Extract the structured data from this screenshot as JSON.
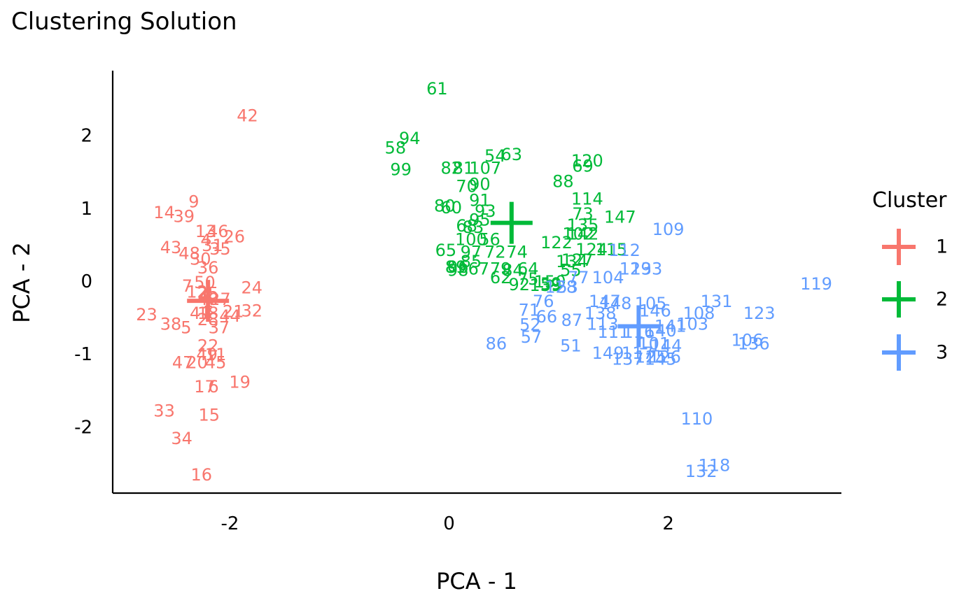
{
  "chart_data": {
    "type": "scatter",
    "title": "Clustering Solution",
    "xlabel": "PCA - 1",
    "ylabel": "PCA - 2",
    "xlim": [
      -3.07,
      3.58
    ],
    "ylim": [
      -2.9,
      2.9
    ],
    "x_ticks": [
      {
        "value": -2,
        "label": "-2"
      },
      {
        "value": 0,
        "label": "0"
      },
      {
        "value": 2,
        "label": "2"
      }
    ],
    "y_ticks": [
      {
        "value": 2,
        "label": "2"
      },
      {
        "value": 1,
        "label": "1"
      },
      {
        "value": 0,
        "label": "0"
      },
      {
        "value": -1,
        "label": "-1"
      },
      {
        "value": -2,
        "label": "-2"
      }
    ],
    "grid": false,
    "legend": {
      "title": "Cluster",
      "placement": "right",
      "entries": [
        {
          "label": "1",
          "color": "#F8766D"
        },
        {
          "label": "2",
          "color": "#00BA38"
        },
        {
          "label": "3",
          "color": "#619CFF"
        }
      ]
    },
    "centroids": [
      {
        "cluster": "1",
        "x": -2.2,
        "y": -0.26
      },
      {
        "cluster": "2",
        "x": 0.57,
        "y": 0.81
      },
      {
        "cluster": "3",
        "x": 1.73,
        "y": -0.61
      }
    ],
    "series": [
      {
        "cluster": "1",
        "color": "#F8766D",
        "points": [
          {
            "label": "42",
            "x": -1.84,
            "y": 2.28
          },
          {
            "label": "9",
            "x": -2.33,
            "y": 1.1
          },
          {
            "label": "14",
            "x": -2.6,
            "y": 0.95
          },
          {
            "label": "39",
            "x": -2.42,
            "y": 0.9
          },
          {
            "label": "13",
            "x": -2.22,
            "y": 0.69
          },
          {
            "label": "46",
            "x": -2.11,
            "y": 0.69
          },
          {
            "label": "26",
            "x": -1.96,
            "y": 0.62
          },
          {
            "label": "43",
            "x": -2.54,
            "y": 0.47
          },
          {
            "label": "4",
            "x": -2.22,
            "y": 0.57
          },
          {
            "label": "31",
            "x": -2.16,
            "y": 0.5
          },
          {
            "label": "35",
            "x": -2.09,
            "y": 0.45
          },
          {
            "label": "48",
            "x": -2.37,
            "y": 0.39
          },
          {
            "label": "30",
            "x": -2.27,
            "y": 0.31
          },
          {
            "label": "36",
            "x": -2.2,
            "y": 0.19
          },
          {
            "label": "7",
            "x": -2.39,
            "y": -0.06
          },
          {
            "label": "50",
            "x": -2.23,
            "y": -0.01
          },
          {
            "label": "24",
            "x": -1.8,
            "y": -0.08
          },
          {
            "label": "12",
            "x": -2.3,
            "y": -0.14
          },
          {
            "label": "25",
            "x": -2.2,
            "y": -0.16
          },
          {
            "label": "8",
            "x": -2.2,
            "y": -0.21
          },
          {
            "label": "40",
            "x": -2.2,
            "y": -0.24
          },
          {
            "label": "1",
            "x": -2.2,
            "y": -0.27
          },
          {
            "label": "27",
            "x": -2.09,
            "y": -0.24
          },
          {
            "label": "21",
            "x": -1.97,
            "y": -0.41
          },
          {
            "label": "32",
            "x": -1.8,
            "y": -0.4
          },
          {
            "label": "23",
            "x": -2.76,
            "y": -0.45
          },
          {
            "label": "41",
            "x": -2.27,
            "y": -0.43
          },
          {
            "label": "18",
            "x": -2.2,
            "y": -0.43
          },
          {
            "label": "28",
            "x": -2.2,
            "y": -0.52
          },
          {
            "label": "44",
            "x": -2.0,
            "y": -0.47
          },
          {
            "label": "38",
            "x": -2.54,
            "y": -0.58
          },
          {
            "label": "5",
            "x": -2.4,
            "y": -0.63
          },
          {
            "label": "37",
            "x": -2.1,
            "y": -0.63
          },
          {
            "label": "22",
            "x": -2.2,
            "y": -0.88
          },
          {
            "label": "49",
            "x": -2.21,
            "y": -1.0
          },
          {
            "label": "11",
            "x": -2.13,
            "y": -1.0
          },
          {
            "label": "47",
            "x": -2.43,
            "y": -1.11
          },
          {
            "label": "20",
            "x": -2.3,
            "y": -1.11
          },
          {
            "label": "45",
            "x": -2.13,
            "y": -1.11
          },
          {
            "label": "17",
            "x": -2.23,
            "y": -1.44
          },
          {
            "label": "6",
            "x": -2.15,
            "y": -1.44
          },
          {
            "label": "19",
            "x": -1.91,
            "y": -1.38
          },
          {
            "label": "33",
            "x": -2.6,
            "y": -1.77
          },
          {
            "label": "15",
            "x": -2.19,
            "y": -1.83
          },
          {
            "label": "34",
            "x": -2.44,
            "y": -2.15
          },
          {
            "label": "16",
            "x": -2.26,
            "y": -2.65
          }
        ]
      },
      {
        "cluster": "2",
        "color": "#00BA38",
        "points": [
          {
            "label": "61",
            "x": -0.11,
            "y": 2.65
          },
          {
            "label": "94",
            "x": -0.36,
            "y": 1.97
          },
          {
            "label": "58",
            "x": -0.49,
            "y": 1.84
          },
          {
            "label": "54",
            "x": 0.42,
            "y": 1.73
          },
          {
            "label": "63",
            "x": 0.57,
            "y": 1.75
          },
          {
            "label": "120",
            "x": 1.26,
            "y": 1.66
          },
          {
            "label": "69",
            "x": 1.22,
            "y": 1.59
          },
          {
            "label": "99",
            "x": -0.44,
            "y": 1.54
          },
          {
            "label": "82",
            "x": 0.02,
            "y": 1.56
          },
          {
            "label": "81",
            "x": 0.13,
            "y": 1.56
          },
          {
            "label": "107",
            "x": 0.33,
            "y": 1.56
          },
          {
            "label": "88",
            "x": 1.04,
            "y": 1.38
          },
          {
            "label": "70",
            "x": 0.16,
            "y": 1.31
          },
          {
            "label": "90",
            "x": 0.28,
            "y": 1.34
          },
          {
            "label": "114",
            "x": 1.26,
            "y": 1.14
          },
          {
            "label": "91",
            "x": 0.28,
            "y": 1.12
          },
          {
            "label": "80",
            "x": -0.04,
            "y": 1.04
          },
          {
            "label": "60",
            "x": 0.02,
            "y": 1.02
          },
          {
            "label": "93",
            "x": 0.33,
            "y": 0.97
          },
          {
            "label": "73",
            "x": 1.22,
            "y": 0.93
          },
          {
            "label": "147",
            "x": 1.56,
            "y": 0.89
          },
          {
            "label": "95",
            "x": 0.28,
            "y": 0.85
          },
          {
            "label": "68",
            "x": 0.16,
            "y": 0.77
          },
          {
            "label": "83",
            "x": 0.22,
            "y": 0.75
          },
          {
            "label": "135",
            "x": 1.22,
            "y": 0.78
          },
          {
            "label": "102",
            "x": 1.18,
            "y": 0.66
          },
          {
            "label": "142",
            "x": 1.22,
            "y": 0.66
          },
          {
            "label": "122",
            "x": 0.98,
            "y": 0.54
          },
          {
            "label": "100",
            "x": 0.2,
            "y": 0.58
          },
          {
            "label": "56",
            "x": 0.37,
            "y": 0.58
          },
          {
            "label": "65",
            "x": -0.03,
            "y": 0.43
          },
          {
            "label": "97",
            "x": 0.2,
            "y": 0.41
          },
          {
            "label": "72",
            "x": 0.42,
            "y": 0.41
          },
          {
            "label": "74",
            "x": 0.62,
            "y": 0.41
          },
          {
            "label": "124",
            "x": 1.3,
            "y": 0.44
          },
          {
            "label": "115",
            "x": 1.48,
            "y": 0.44
          },
          {
            "label": "127",
            "x": 1.17,
            "y": 0.3
          },
          {
            "label": "134",
            "x": 1.12,
            "y": 0.28
          },
          {
            "label": "89",
            "x": 0.06,
            "y": 0.2
          },
          {
            "label": "96",
            "x": 0.08,
            "y": 0.2
          },
          {
            "label": "98",
            "x": 0.08,
            "y": 0.16
          },
          {
            "label": "67",
            "x": 0.27,
            "y": 0.18
          },
          {
            "label": "85",
            "x": 0.2,
            "y": 0.28
          },
          {
            "label": "79",
            "x": 0.47,
            "y": 0.18
          },
          {
            "label": "64",
            "x": 0.72,
            "y": 0.18
          },
          {
            "label": "84",
            "x": 0.58,
            "y": 0.16
          },
          {
            "label": "62",
            "x": 0.47,
            "y": 0.06
          },
          {
            "label": "55",
            "x": 1.11,
            "y": 0.16
          },
          {
            "label": "150",
            "x": 0.92,
            "y": 0.0
          },
          {
            "label": "59",
            "x": 0.93,
            "y": -0.03
          },
          {
            "label": "92",
            "x": 0.64,
            "y": -0.04
          },
          {
            "label": "75",
            "x": 0.72,
            "y": 0.04
          },
          {
            "label": "139",
            "x": 0.88,
            "y": -0.05
          }
        ]
      },
      {
        "cluster": "3",
        "color": "#619CFF",
        "points": [
          {
            "label": "109",
            "x": 2.0,
            "y": 0.72
          },
          {
            "label": "112",
            "x": 1.6,
            "y": 0.43
          },
          {
            "label": "119",
            "x": 3.35,
            "y": -0.03
          },
          {
            "label": "129",
            "x": 1.7,
            "y": 0.18
          },
          {
            "label": "133",
            "x": 1.8,
            "y": 0.18
          },
          {
            "label": "104",
            "x": 1.45,
            "y": 0.06
          },
          {
            "label": "77",
            "x": 1.18,
            "y": 0.06
          },
          {
            "label": "53",
            "x": 1.08,
            "y": -0.07
          },
          {
            "label": "128",
            "x": 1.02,
            "y": -0.07
          },
          {
            "label": "131",
            "x": 2.44,
            "y": -0.27
          },
          {
            "label": "76",
            "x": 0.86,
            "y": -0.27
          },
          {
            "label": "147",
            "x": 1.42,
            "y": -0.27
          },
          {
            "label": "148",
            "x": 1.52,
            "y": -0.3
          },
          {
            "label": "105",
            "x": 1.84,
            "y": -0.3
          },
          {
            "label": "123",
            "x": 2.83,
            "y": -0.43
          },
          {
            "label": "71",
            "x": 0.73,
            "y": -0.39
          },
          {
            "label": "138",
            "x": 1.38,
            "y": -0.43
          },
          {
            "label": "108",
            "x": 2.28,
            "y": -0.43
          },
          {
            "label": "146",
            "x": 1.88,
            "y": -0.4
          },
          {
            "label": "103",
            "x": 2.22,
            "y": -0.58
          },
          {
            "label": "66",
            "x": 0.89,
            "y": -0.48
          },
          {
            "label": "87",
            "x": 1.12,
            "y": -0.53
          },
          {
            "label": "52",
            "x": 0.74,
            "y": -0.59
          },
          {
            "label": "113",
            "x": 1.4,
            "y": -0.58
          },
          {
            "label": "111",
            "x": 1.5,
            "y": -0.69
          },
          {
            "label": "116",
            "x": 1.73,
            "y": -0.69
          },
          {
            "label": "140",
            "x": 1.93,
            "y": -0.67
          },
          {
            "label": "141",
            "x": 2.02,
            "y": -0.61
          },
          {
            "label": "57",
            "x": 0.75,
            "y": -0.76
          },
          {
            "label": "86",
            "x": 0.43,
            "y": -0.85
          },
          {
            "label": "51",
            "x": 1.11,
            "y": -0.88
          },
          {
            "label": "106",
            "x": 2.72,
            "y": -0.8
          },
          {
            "label": "136",
            "x": 2.78,
            "y": -0.85
          },
          {
            "label": "101",
            "x": 1.87,
            "y": -0.85
          },
          {
            "label": "144",
            "x": 1.98,
            "y": -0.88
          },
          {
            "label": "149",
            "x": 1.45,
            "y": -0.98
          },
          {
            "label": "117",
            "x": 1.72,
            "y": -0.98
          },
          {
            "label": "137",
            "x": 1.63,
            "y": -1.06
          },
          {
            "label": "125",
            "x": 1.84,
            "y": -1.03
          },
          {
            "label": "145",
            "x": 1.93,
            "y": -1.06
          },
          {
            "label": "126",
            "x": 1.97,
            "y": -1.03
          },
          {
            "label": "110",
            "x": 2.26,
            "y": -1.88
          },
          {
            "label": "118",
            "x": 2.42,
            "y": -2.52
          },
          {
            "label": "132",
            "x": 2.3,
            "y": -2.6
          }
        ]
      }
    ]
  }
}
